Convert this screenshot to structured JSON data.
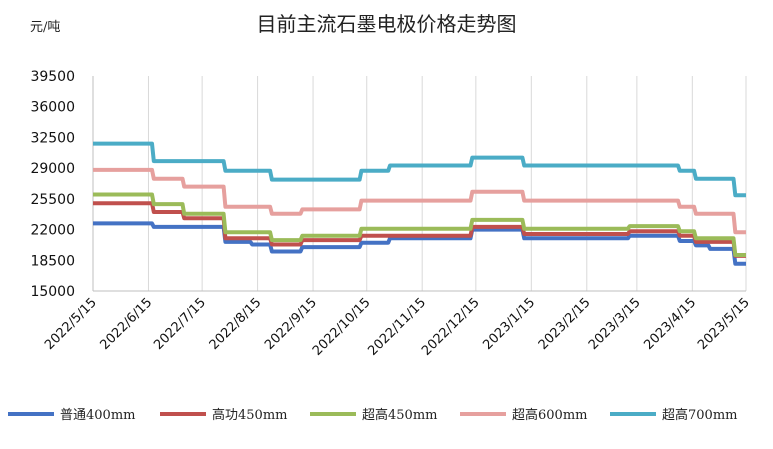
{
  "chart_data": {
    "type": "line",
    "title": "目前主流石墨电极价格走势图",
    "unit": "元/吨",
    "xlabel": "",
    "ylabel": "元/吨",
    "ylim": [
      15000,
      39500
    ],
    "yticks": [
      "39500",
      "36000",
      "32500",
      "29000",
      "25500",
      "22000",
      "18500",
      "15000"
    ],
    "xlim": [
      "2022/5/15",
      "2023/5/15"
    ],
    "xticks": [
      "2022/5/15",
      "2022/6/15",
      "2022/7/15",
      "2022/8/15",
      "2022/9/15",
      "2022/10/15",
      "2022/11/15",
      "2022/12/15",
      "2023/1/15",
      "2023/2/15",
      "2023/3/15",
      "2023/4/15",
      "2023/5/15"
    ],
    "grid": "vertical",
    "legend_position": "bottom",
    "series": [
      {
        "name": "普通400mm",
        "color": "#4472C4",
        "points": [
          [
            "2022/5/15",
            22700
          ],
          [
            "2022/6/17",
            22700
          ],
          [
            "2022/6/18",
            22300
          ],
          [
            "2022/7/27",
            22300
          ],
          [
            "2022/7/28",
            20600
          ],
          [
            "2022/8/11",
            20600
          ],
          [
            "2022/8/12",
            20300
          ],
          [
            "2022/8/22",
            20300
          ],
          [
            "2022/8/23",
            19500
          ],
          [
            "2022/9/8",
            19500
          ],
          [
            "2022/9/9",
            20000
          ],
          [
            "2022/10/11",
            20000
          ],
          [
            "2022/10/12",
            20500
          ],
          [
            "2022/10/27",
            20500
          ],
          [
            "2022/10/28",
            21000
          ],
          [
            "2022/12/12",
            21000
          ],
          [
            "2022/12/13",
            22000
          ],
          [
            "2023/1/10",
            22000
          ],
          [
            "2023/1/11",
            21000
          ],
          [
            "2023/3/10",
            21000
          ],
          [
            "2023/3/11",
            21300
          ],
          [
            "2023/4/7",
            21300
          ],
          [
            "2023/4/8",
            20700
          ],
          [
            "2023/4/16",
            20700
          ],
          [
            "2023/4/17",
            20200
          ],
          [
            "2023/4/24",
            20200
          ],
          [
            "2023/4/25",
            19800
          ],
          [
            "2023/5/8",
            19800
          ],
          [
            "2023/5/9",
            18100
          ],
          [
            "2023/5/15",
            18100
          ]
        ]
      },
      {
        "name": "高功450mm",
        "color": "#C0504D",
        "points": [
          [
            "2022/5/15",
            25000
          ],
          [
            "2022/6/17",
            25000
          ],
          [
            "2022/6/18",
            24000
          ],
          [
            "2022/7/4",
            24000
          ],
          [
            "2022/7/5",
            23300
          ],
          [
            "2022/7/27",
            23300
          ],
          [
            "2022/7/28",
            21000
          ],
          [
            "2022/8/22",
            21000
          ],
          [
            "2022/8/23",
            20300
          ],
          [
            "2022/9/8",
            20300
          ],
          [
            "2022/9/9",
            20800
          ],
          [
            "2022/10/11",
            20800
          ],
          [
            "2022/10/12",
            21300
          ],
          [
            "2022/12/12",
            21300
          ],
          [
            "2022/12/13",
            22300
          ],
          [
            "2023/1/10",
            22300
          ],
          [
            "2023/1/11",
            21500
          ],
          [
            "2023/3/10",
            21500
          ],
          [
            "2023/3/11",
            21800
          ],
          [
            "2023/4/7",
            21800
          ],
          [
            "2023/4/8",
            21300
          ],
          [
            "2023/4/16",
            21300
          ],
          [
            "2023/4/17",
            20600
          ],
          [
            "2023/5/8",
            20600
          ],
          [
            "2023/5/9",
            19000
          ],
          [
            "2023/5/15",
            19000
          ]
        ]
      },
      {
        "name": "超高450mm",
        "color": "#9BBB59",
        "points": [
          [
            "2022/5/15",
            26000
          ],
          [
            "2022/6/17",
            26000
          ],
          [
            "2022/6/18",
            24900
          ],
          [
            "2022/7/4",
            24900
          ],
          [
            "2022/7/5",
            23800
          ],
          [
            "2022/7/27",
            23800
          ],
          [
            "2022/7/28",
            21700
          ],
          [
            "2022/8/22",
            21700
          ],
          [
            "2022/8/23",
            20800
          ],
          [
            "2022/9/8",
            20800
          ],
          [
            "2022/9/9",
            21300
          ],
          [
            "2022/10/11",
            21300
          ],
          [
            "2022/10/12",
            22100
          ],
          [
            "2022/12/12",
            22100
          ],
          [
            "2022/12/13",
            23100
          ],
          [
            "2023/1/10",
            23100
          ],
          [
            "2023/1/11",
            22100
          ],
          [
            "2023/3/10",
            22100
          ],
          [
            "2023/3/11",
            22400
          ],
          [
            "2023/4/7",
            22400
          ],
          [
            "2023/4/8",
            21800
          ],
          [
            "2023/4/16",
            21800
          ],
          [
            "2023/4/17",
            21000
          ],
          [
            "2023/5/8",
            21000
          ],
          [
            "2023/5/9",
            19100
          ],
          [
            "2023/5/15",
            19100
          ]
        ]
      },
      {
        "name": "超高600mm",
        "color": "#E6A09E",
        "points": [
          [
            "2022/5/15",
            28800
          ],
          [
            "2022/6/17",
            28800
          ],
          [
            "2022/6/18",
            27800
          ],
          [
            "2022/7/4",
            27800
          ],
          [
            "2022/7/5",
            26900
          ],
          [
            "2022/7/27",
            26900
          ],
          [
            "2022/7/28",
            24600
          ],
          [
            "2022/8/22",
            24600
          ],
          [
            "2022/8/23",
            23800
          ],
          [
            "2022/9/8",
            23800
          ],
          [
            "2022/9/9",
            24300
          ],
          [
            "2022/10/11",
            24300
          ],
          [
            "2022/10/12",
            25300
          ],
          [
            "2022/12/12",
            25300
          ],
          [
            "2022/12/13",
            26300
          ],
          [
            "2023/1/10",
            26300
          ],
          [
            "2023/1/11",
            25300
          ],
          [
            "2023/4/7",
            25300
          ],
          [
            "2023/4/8",
            24600
          ],
          [
            "2023/4/16",
            24600
          ],
          [
            "2023/4/17",
            23800
          ],
          [
            "2023/5/8",
            23800
          ],
          [
            "2023/5/9",
            21700
          ],
          [
            "2023/5/15",
            21700
          ]
        ]
      },
      {
        "name": "超高700mm",
        "color": "#4BACC6",
        "points": [
          [
            "2022/5/15",
            31800
          ],
          [
            "2022/6/17",
            31800
          ],
          [
            "2022/6/18",
            29800
          ],
          [
            "2022/7/27",
            29800
          ],
          [
            "2022/7/28",
            28700
          ],
          [
            "2022/8/22",
            28700
          ],
          [
            "2022/8/23",
            27700
          ],
          [
            "2022/10/11",
            27700
          ],
          [
            "2022/10/12",
            28700
          ],
          [
            "2022/10/27",
            28700
          ],
          [
            "2022/10/28",
            29300
          ],
          [
            "2022/12/12",
            29300
          ],
          [
            "2022/12/13",
            30200
          ],
          [
            "2023/1/10",
            30200
          ],
          [
            "2023/1/11",
            29300
          ],
          [
            "2023/4/7",
            29300
          ],
          [
            "2023/4/8",
            28700
          ],
          [
            "2023/4/16",
            28700
          ],
          [
            "2023/4/17",
            27800
          ],
          [
            "2023/5/8",
            27800
          ],
          [
            "2023/5/9",
            25900
          ],
          [
            "2023/5/15",
            25900
          ]
        ]
      }
    ]
  }
}
